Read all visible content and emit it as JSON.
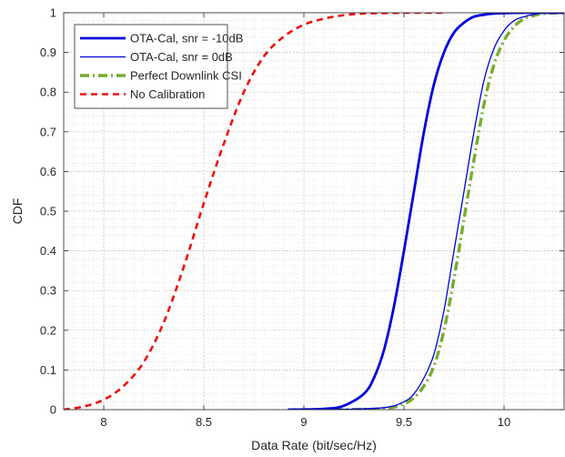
{
  "chart_data": {
    "type": "line",
    "title": "",
    "xlabel": "Data Rate (bit/sec/Hz)",
    "ylabel": "CDF",
    "xlim": [
      7.8,
      10.3
    ],
    "ylim": [
      0,
      1
    ],
    "xticks": [
      8,
      8.5,
      9,
      9.5,
      10
    ],
    "xtick_labels": [
      "8",
      "8.5",
      "9",
      "9.5",
      "10"
    ],
    "yticks": [
      0,
      0.1,
      0.2,
      0.3,
      0.4,
      0.5,
      0.6,
      0.7,
      0.8,
      0.9,
      1
    ],
    "ytick_labels": [
      "0",
      "0.1",
      "0.2",
      "0.3",
      "0.4",
      "0.5",
      "0.6",
      "0.7",
      "0.8",
      "0.9",
      "1"
    ],
    "grid": true,
    "minor_grid": true,
    "legend_position": "top-left",
    "series": [
      {
        "name": "OTA-Cal, snr = -10dB",
        "color": "#0000dd",
        "style": "solid-thick",
        "x": [
          8.92,
          9.1,
          9.2,
          9.3,
          9.35,
          9.4,
          9.45,
          9.5,
          9.55,
          9.6,
          9.65,
          9.7,
          9.75,
          9.8,
          9.85,
          9.9,
          9.95,
          10.0,
          10.1,
          10.2,
          10.3
        ],
        "y": [
          0,
          0.002,
          0.01,
          0.04,
          0.08,
          0.15,
          0.26,
          0.4,
          0.55,
          0.7,
          0.82,
          0.9,
          0.95,
          0.975,
          0.99,
          0.995,
          0.998,
          0.999,
          1,
          1,
          1
        ]
      },
      {
        "name": "OTA-Cal, snr = 0dB",
        "color": "#0000dd",
        "style": "solid-thin",
        "x": [
          9.15,
          9.4,
          9.5,
          9.55,
          9.6,
          9.65,
          9.7,
          9.75,
          9.8,
          9.85,
          9.9,
          9.95,
          10.0,
          10.05,
          10.1,
          10.15,
          10.2,
          10.3
        ],
        "y": [
          0,
          0.005,
          0.02,
          0.04,
          0.08,
          0.14,
          0.25,
          0.4,
          0.55,
          0.7,
          0.83,
          0.91,
          0.955,
          0.98,
          0.99,
          0.996,
          0.999,
          1
        ]
      },
      {
        "name": "Perfect Downlink CSI",
        "color": "#77ac30",
        "style": "dashdot",
        "x": [
          9.15,
          9.4,
          9.5,
          9.55,
          9.6,
          9.65,
          9.7,
          9.75,
          9.8,
          9.85,
          9.9,
          9.95,
          10.0,
          10.05,
          10.1,
          10.15,
          10.2,
          10.3
        ],
        "y": [
          0,
          0.003,
          0.015,
          0.03,
          0.06,
          0.11,
          0.2,
          0.33,
          0.48,
          0.63,
          0.77,
          0.87,
          0.93,
          0.965,
          0.985,
          0.993,
          0.998,
          1
        ]
      },
      {
        "name": "No Calibration",
        "color": "#ee1111",
        "style": "dashed",
        "x": [
          7.8,
          7.9,
          8.0,
          8.1,
          8.2,
          8.3,
          8.4,
          8.5,
          8.6,
          8.7,
          8.8,
          8.9,
          9.0,
          9.1,
          9.2,
          9.3,
          9.4,
          9.5,
          9.6,
          9.7
        ],
        "y": [
          0,
          0.008,
          0.025,
          0.06,
          0.12,
          0.22,
          0.36,
          0.52,
          0.67,
          0.8,
          0.89,
          0.94,
          0.97,
          0.985,
          0.994,
          0.998,
          0.999,
          1,
          1,
          1
        ]
      }
    ]
  }
}
